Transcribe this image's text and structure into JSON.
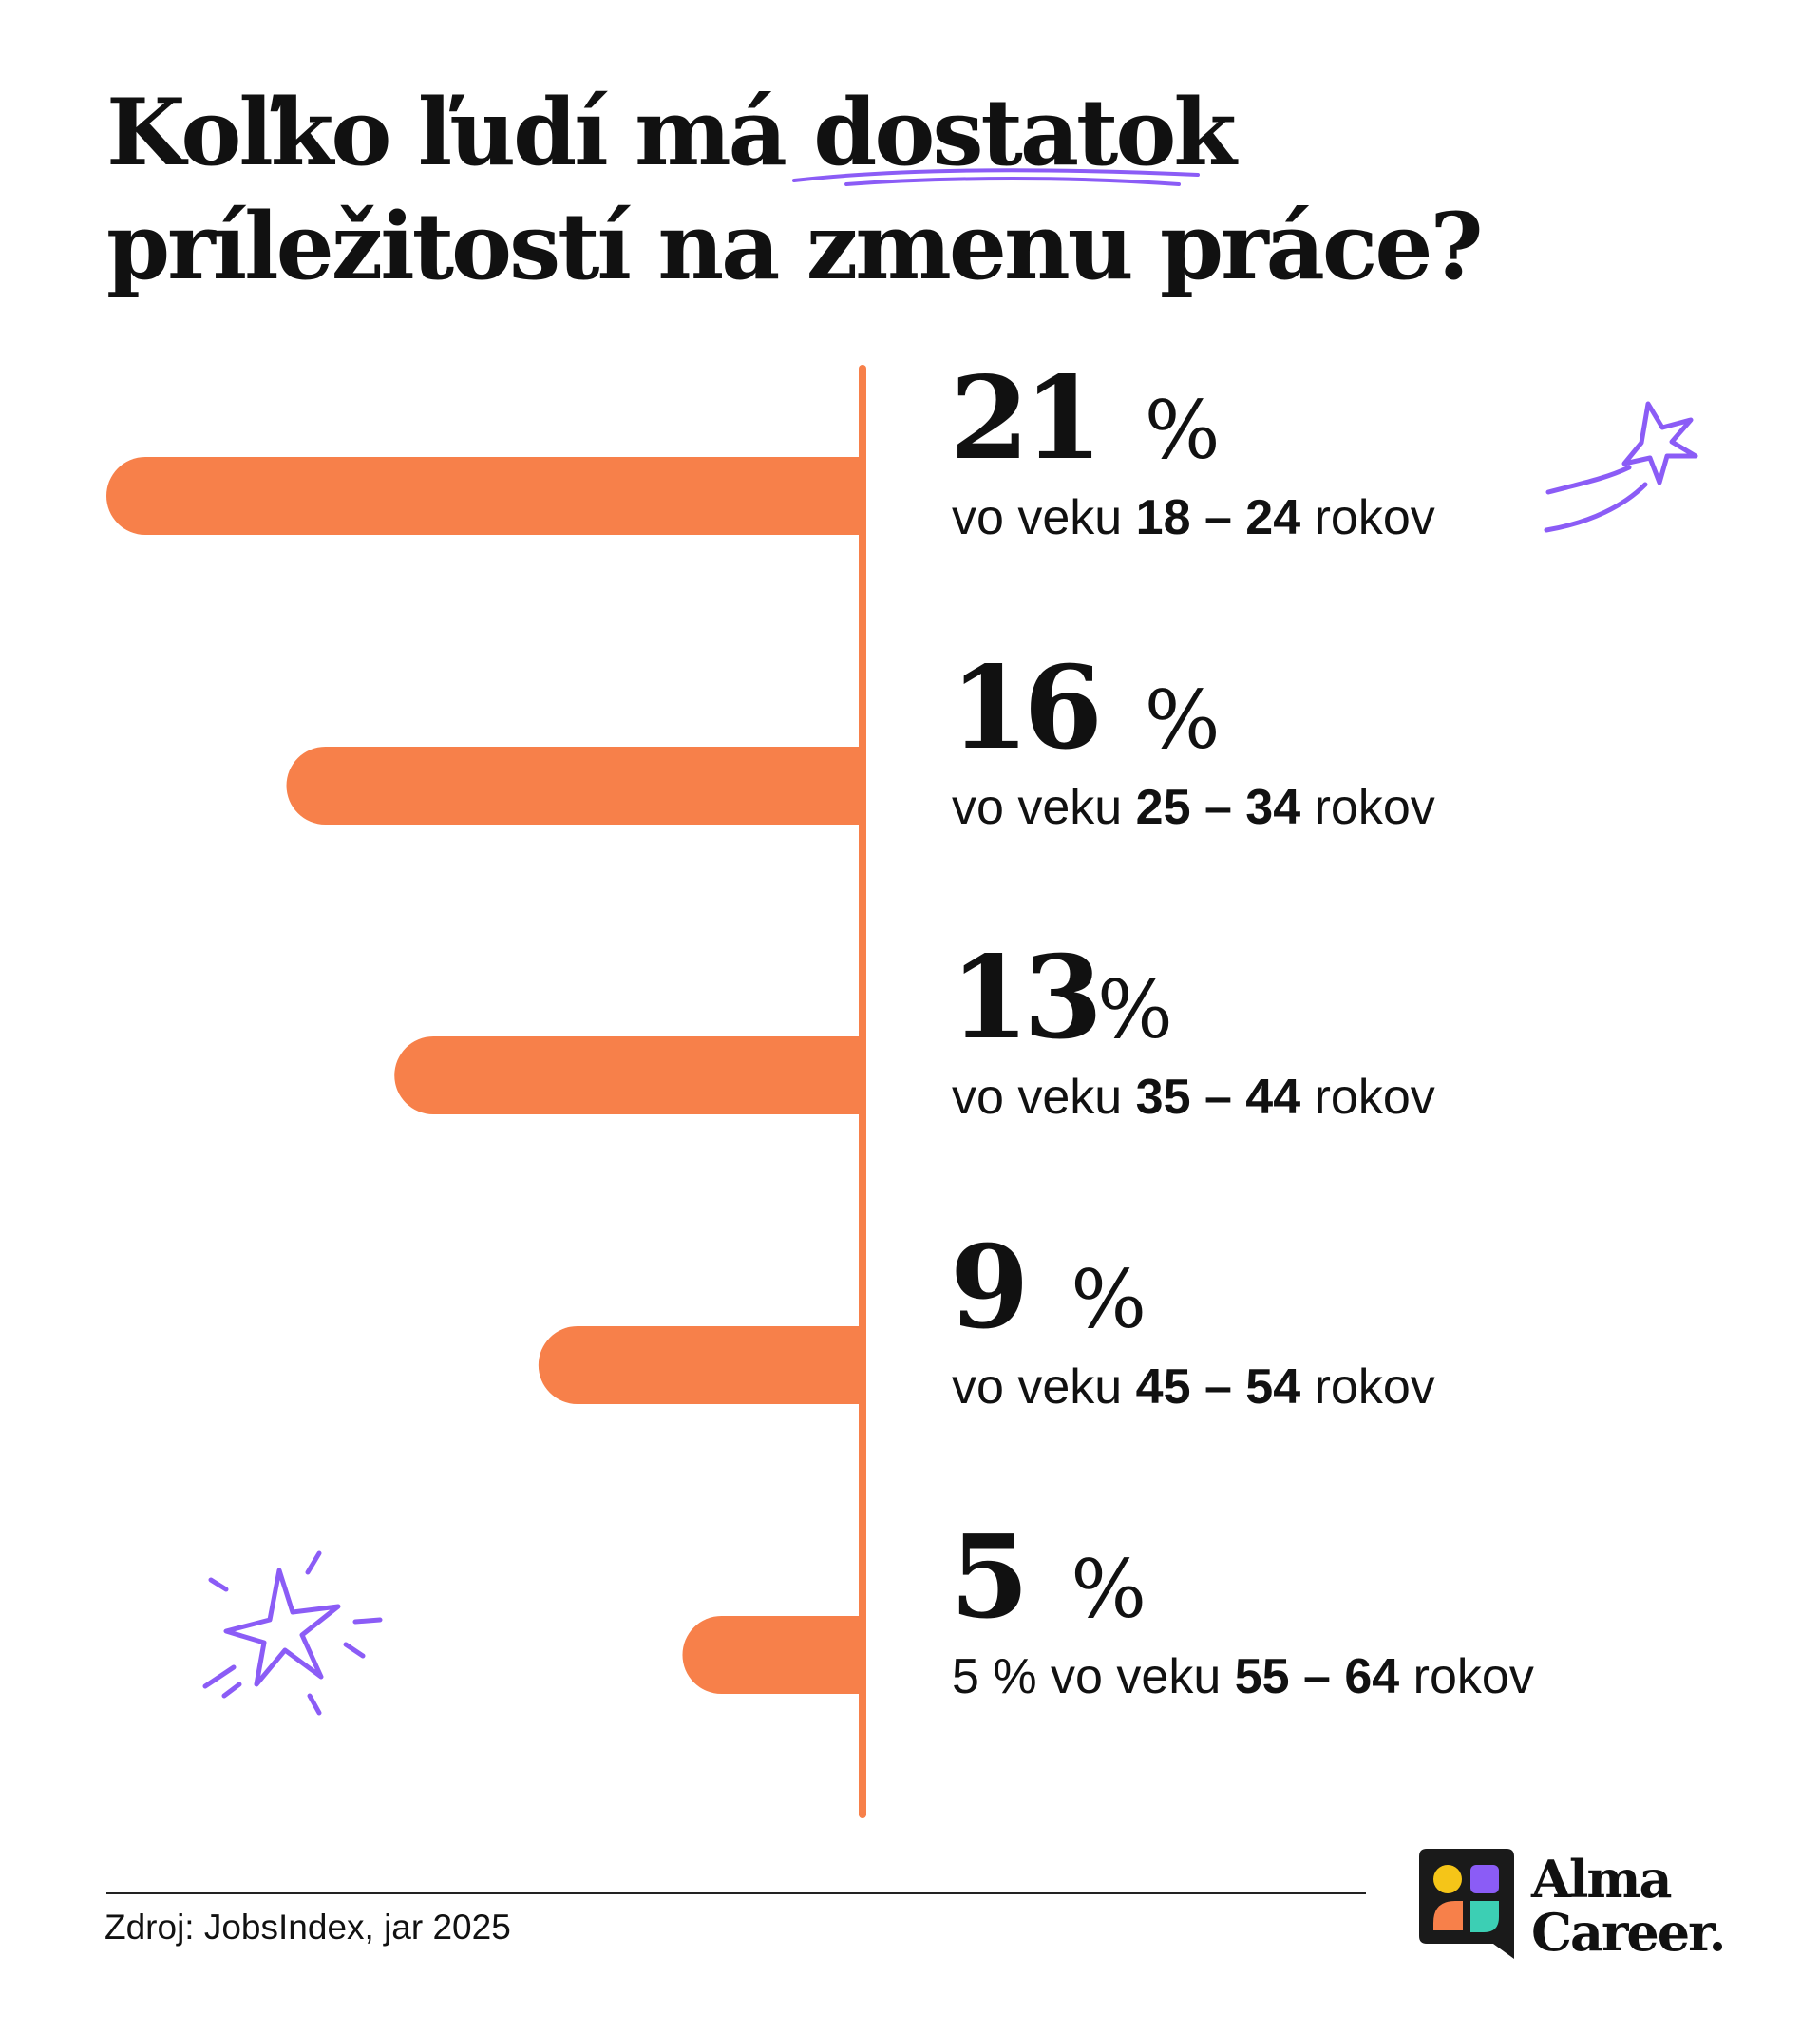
{
  "title": {
    "before": "Koľko ľudí má ",
    "highlight": "dostatok",
    "after": " príležitostí na zmenu práce?"
  },
  "colors": {
    "bar": "#F7804A",
    "axis": "#F7804A",
    "accent": "#8B5CF6",
    "text": "#111111"
  },
  "chart_data": {
    "type": "bar",
    "orientation": "horizontal",
    "categories": [
      "18 – 24",
      "25 – 34",
      "35 – 44",
      "45 – 54",
      "55 – 64"
    ],
    "values": [
      21,
      16,
      13,
      9,
      5
    ],
    "unit": "%",
    "value_labels": [
      "21 %",
      "16 %",
      "13%",
      "9 %",
      "5 %"
    ],
    "labels": [
      {
        "prefix": "",
        "pre": "vo veku ",
        "range": "18 – 24",
        "post": " rokov"
      },
      {
        "prefix": "",
        "pre": "vo veku ",
        "range": "25 – 34",
        "post": " rokov"
      },
      {
        "prefix": "",
        "pre": "vo veku ",
        "range": "35 – 44",
        "post": " rokov"
      },
      {
        "prefix": "",
        "pre": "vo veku ",
        "range": "45 – 54",
        "post": " rokov"
      },
      {
        "prefix": "5 % ",
        "pre": "vo veku ",
        "range": "55 – 64",
        "post": " rokov"
      }
    ],
    "grid": false
  },
  "footer": {
    "source": "Zdroj: JobsIndex, jar 2025"
  },
  "brand": {
    "line1": "Alma",
    "line2": "Career.",
    "icon": "alma-career-logo-icon"
  },
  "decorations": [
    "shooting-star-icon",
    "sparkle-star-icon"
  ]
}
